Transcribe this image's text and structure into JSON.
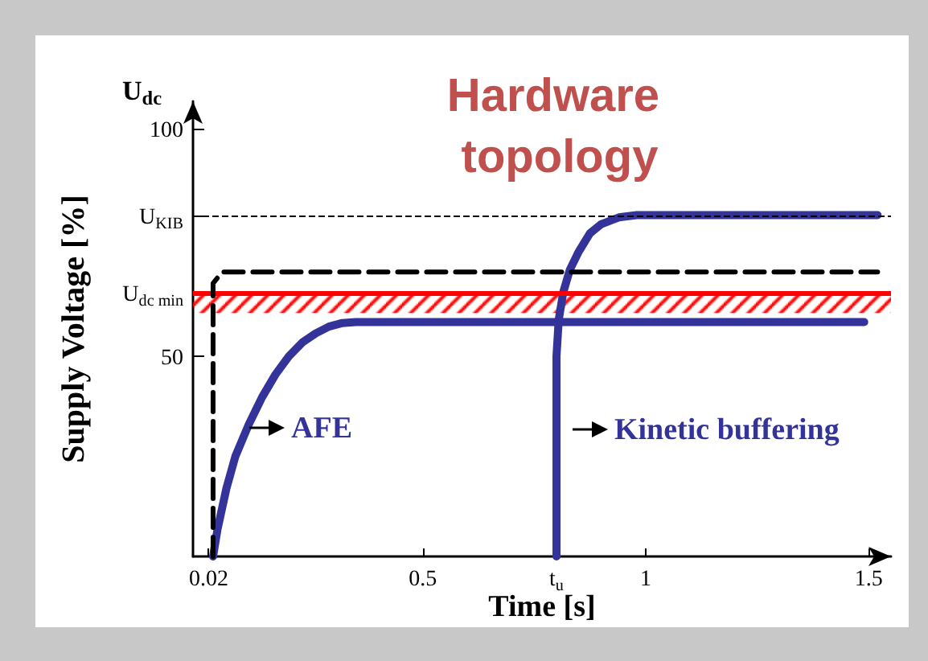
{
  "chart_data": {
    "type": "line",
    "title": "Hardware topology",
    "xlabel": "Time [s]",
    "ylabel": "Supply Voltage [%]",
    "series": [
      {
        "color": "#333399",
        "x": [
          0.03,
          0.04,
          0.06,
          0.08,
          0.11,
          0.14,
          0.17,
          0.2,
          0.23,
          0.26,
          0.29,
          0.32,
          0.35,
          1.49
        ],
        "values": [
          6,
          12,
          21,
          28,
          35,
          41,
          46,
          50,
          53,
          55,
          56.5,
          57.3,
          57.5,
          57.5
        ]
      },
      {
        "color": "#333399",
        "x": [
          0.8,
          0.8,
          0.805,
          0.815,
          0.83,
          0.85,
          0.875,
          0.9,
          0.94,
          0.98,
          1.52
        ],
        "values": [
          6,
          50,
          58,
          64,
          69,
          73,
          77,
          79,
          80.5,
          81,
          81
        ]
      },
      {
        "color": "#000000",
        "line_style": "dashed",
        "x": [
          0.03,
          0.03,
          0.05,
          1.52
        ],
        "values": [
          6,
          66,
          68.5,
          68.5
        ]
      }
    ],
    "xlim": [
      -0.015,
      1.55
    ],
    "ylim": [
      6,
      106
    ],
    "xticks": [
      0.02,
      0.5,
      {
        "value": 0.8,
        "label": "t$_{u}$"
      },
      1,
      1.5
    ],
    "yticks": [
      50,
      {
        "value": 64,
        "label": "U$_{dc min}$"
      },
      {
        "value": 81,
        "label": "U$_{KIB}$"
      },
      100
    ],
    "ref_lines": [
      {
        "axis": "y",
        "value": 64,
        "label": null,
        "color": "#ff0000",
        "line_style": "solid"
      },
      {
        "axis": "y",
        "value": 81,
        "label": null,
        "color": "#000000",
        "line_style": "dashed"
      }
    ],
    "bands": [
      {
        "axis": "y",
        "from": 59.5,
        "to": 64,
        "label": null,
        "color": "#ff0000"
      }
    ],
    "annotations": [
      "U$_{dc}$",
      "AFE",
      "Kinetic buffering"
    ],
    "grid": false,
    "marker": "none"
  }
}
